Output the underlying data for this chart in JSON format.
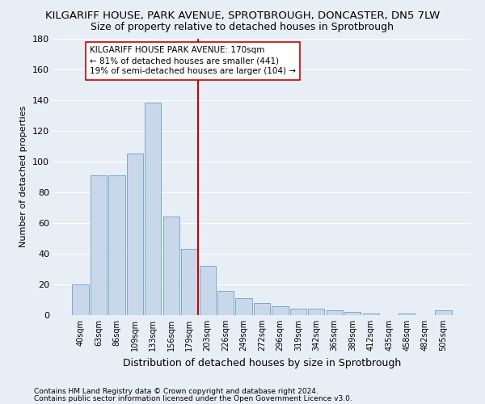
{
  "title1": "KILGARIFF HOUSE, PARK AVENUE, SPROTBROUGH, DONCASTER, DN5 7LW",
  "title2": "Size of property relative to detached houses in Sprotbrough",
  "xlabel": "Distribution of detached houses by size in Sprotbrough",
  "ylabel": "Number of detached properties",
  "footnote1": "Contains HM Land Registry data © Crown copyright and database right 2024.",
  "footnote2": "Contains public sector information licensed under the Open Government Licence v3.0.",
  "bar_labels": [
    "40sqm",
    "63sqm",
    "86sqm",
    "109sqm",
    "133sqm",
    "156sqm",
    "179sqm",
    "203sqm",
    "226sqm",
    "249sqm",
    "272sqm",
    "296sqm",
    "319sqm",
    "342sqm",
    "365sqm",
    "389sqm",
    "412sqm",
    "435sqm",
    "458sqm",
    "482sqm",
    "505sqm"
  ],
  "bar_values": [
    20,
    91,
    91,
    105,
    138,
    64,
    43,
    32,
    16,
    11,
    8,
    6,
    4,
    4,
    3,
    2,
    1,
    0,
    1,
    0,
    3
  ],
  "bar_color": "#c8d8ea",
  "bar_edge_color": "#7aaacb",
  "vline_color": "#cc0000",
  "annotation_text": "KILGARIFF HOUSE PARK AVENUE: 170sqm\n← 81% of detached houses are smaller (441)\n19% of semi-detached houses are larger (104) →",
  "annotation_box_color": "#ffffff",
  "annotation_box_edge": "#cc0000",
  "ylim": [
    0,
    180
  ],
  "yticks": [
    0,
    20,
    40,
    60,
    80,
    100,
    120,
    140,
    160,
    180
  ],
  "bg_color": "#e8eef6",
  "plot_bg_color": "#e8eef6",
  "grid_color": "#ffffff",
  "title1_fontsize": 9.5,
  "title2_fontsize": 9,
  "annotation_fontsize": 7.5,
  "ylabel_fontsize": 8,
  "xlabel_fontsize": 9,
  "footnote_fontsize": 6.5,
  "vline_bar_index": 6
}
